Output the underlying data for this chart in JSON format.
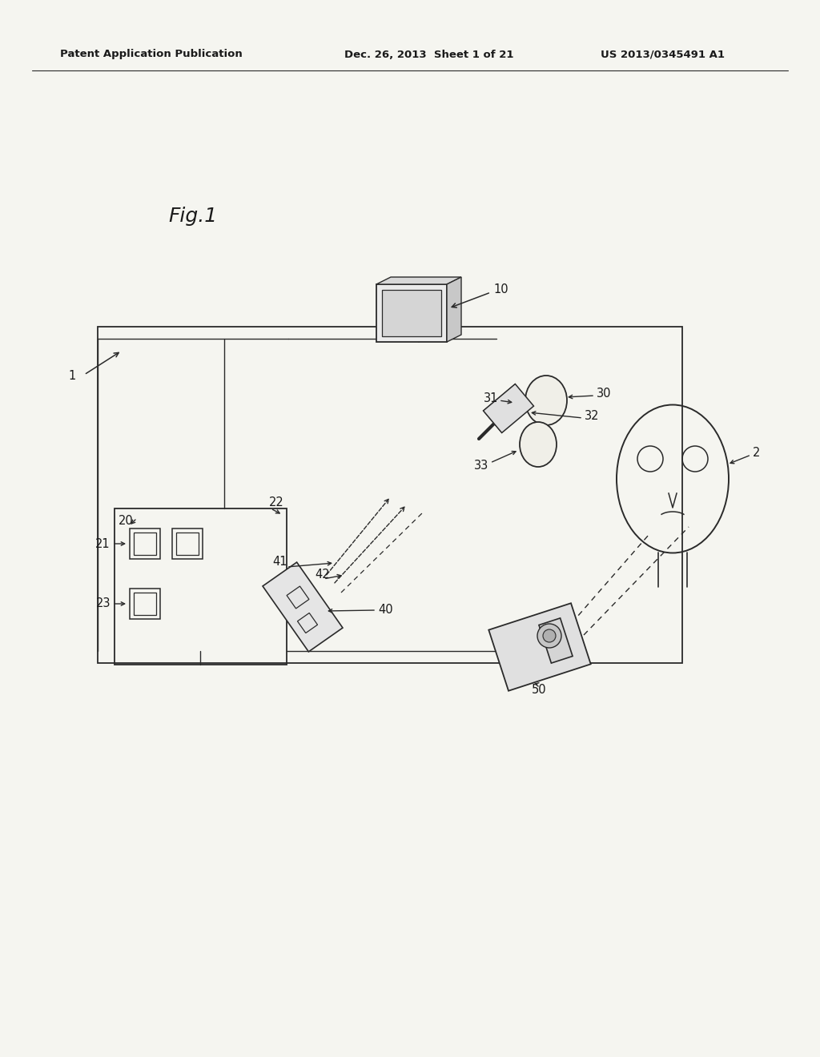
{
  "bg_color": "#f5f5f0",
  "text_color": "#1a1a1a",
  "line_color": "#2a2a2a",
  "header_left": "Patent Application Publication",
  "header_mid": "Dec. 26, 2013  Sheet 1 of 21",
  "header_right": "US 2013/0345491 A1",
  "fig_label": "Fig.1",
  "figsize": [
    10.24,
    13.2
  ],
  "dpi": 100
}
